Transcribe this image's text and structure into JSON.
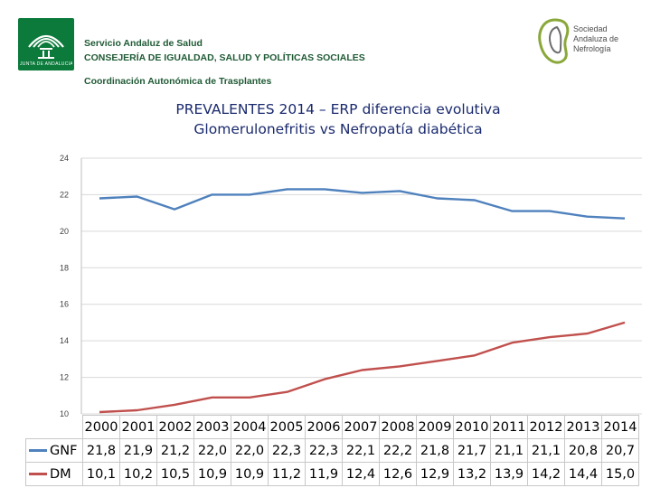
{
  "header": {
    "logo_text": "JUNTA DE ANDALUCIA",
    "org_line1": "Servicio Andaluz de Salud",
    "org_line2": "CONSEJERÍA DE IGUALDAD, SALUD Y POLÍTICAS SOCIALES",
    "org_line3": "Coordinación Autonómica de Trasplantes",
    "society_line1": "Sociedad",
    "society_line2": "Andaluza de",
    "society_line3": "Nefrología"
  },
  "colors": {
    "gnf": "#4f81bd",
    "dm": "#c0504d",
    "title": "#1a2a6e",
    "logo_green": "#0b7a3b"
  },
  "chart_data": {
    "type": "line",
    "title": "PREVALENTES 2014 – ERP diferencia evolutiva",
    "subtitle": "Glomerulonefritis vs Nefropatía diabética",
    "xlabel": "",
    "ylabel": "",
    "ylim": [
      10,
      24
    ],
    "yticks": [
      "24",
      "22",
      "20",
      "18",
      "16",
      "14",
      "12",
      "10"
    ],
    "grid": true,
    "legend": "data-table-left",
    "categories": [
      "2000",
      "2001",
      "2002",
      "2003",
      "2004",
      "2005",
      "2006",
      "2007",
      "2008",
      "2009",
      "2010",
      "2011",
      "2012",
      "2013",
      "2014"
    ],
    "series": [
      {
        "name": "GNF",
        "values": [
          21.8,
          21.9,
          21.2,
          22.0,
          22.0,
          22.3,
          22.3,
          22.1,
          22.2,
          21.8,
          21.7,
          21.1,
          21.1,
          20.8,
          20.7
        ],
        "labels": [
          "21,8",
          "21,9",
          "21,2",
          "22,0",
          "22,0",
          "22,3",
          "22,3",
          "22,1",
          "22,2",
          "21,8",
          "21,7",
          "21,1",
          "21,1",
          "20,8",
          "20,7"
        ]
      },
      {
        "name": "DM",
        "values": [
          10.1,
          10.2,
          10.5,
          10.9,
          10.9,
          11.2,
          11.9,
          12.4,
          12.6,
          12.9,
          13.2,
          13.9,
          14.2,
          14.4,
          15.0
        ],
        "labels": [
          "10,1",
          "10,2",
          "10,5",
          "10,9",
          "10,9",
          "11,2",
          "11,9",
          "12,4",
          "12,6",
          "12,9",
          "13,2",
          "13,9",
          "14,2",
          "14,4",
          "15,0"
        ]
      }
    ]
  }
}
